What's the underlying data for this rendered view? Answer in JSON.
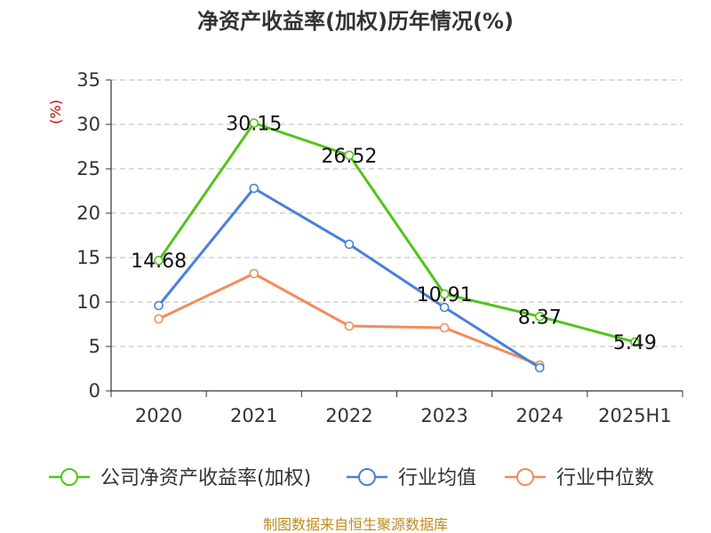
{
  "chart_data": {
    "type": "line",
    "title": "净资产收益率(加权)历年情况(%)",
    "ylabel": "(%)",
    "categories": [
      "2020",
      "2021",
      "2022",
      "2023",
      "2024",
      "2025H1"
    ],
    "ylim": [
      0,
      35
    ],
    "yticks": [
      0,
      5,
      10,
      15,
      20,
      25,
      30,
      35
    ],
    "grid": true,
    "legend_position": "bottom",
    "series": [
      {
        "name": "公司净资产收益率(加权)",
        "color": "#52c41a",
        "values": [
          14.68,
          30.15,
          26.52,
          10.91,
          8.37,
          5.49
        ],
        "labels": [
          "14.68",
          "30.15",
          "26.52",
          "10.91",
          "8.37",
          "5.49"
        ]
      },
      {
        "name": "行业均值",
        "color": "#4a7fd9",
        "values": [
          9.6,
          22.8,
          16.5,
          9.4,
          2.6,
          null
        ]
      },
      {
        "name": "行业中位数",
        "color": "#f28c5a",
        "values": [
          8.1,
          13.2,
          7.3,
          7.1,
          2.9,
          null
        ]
      }
    ]
  },
  "source": "制图数据来自恒生聚源数据库"
}
